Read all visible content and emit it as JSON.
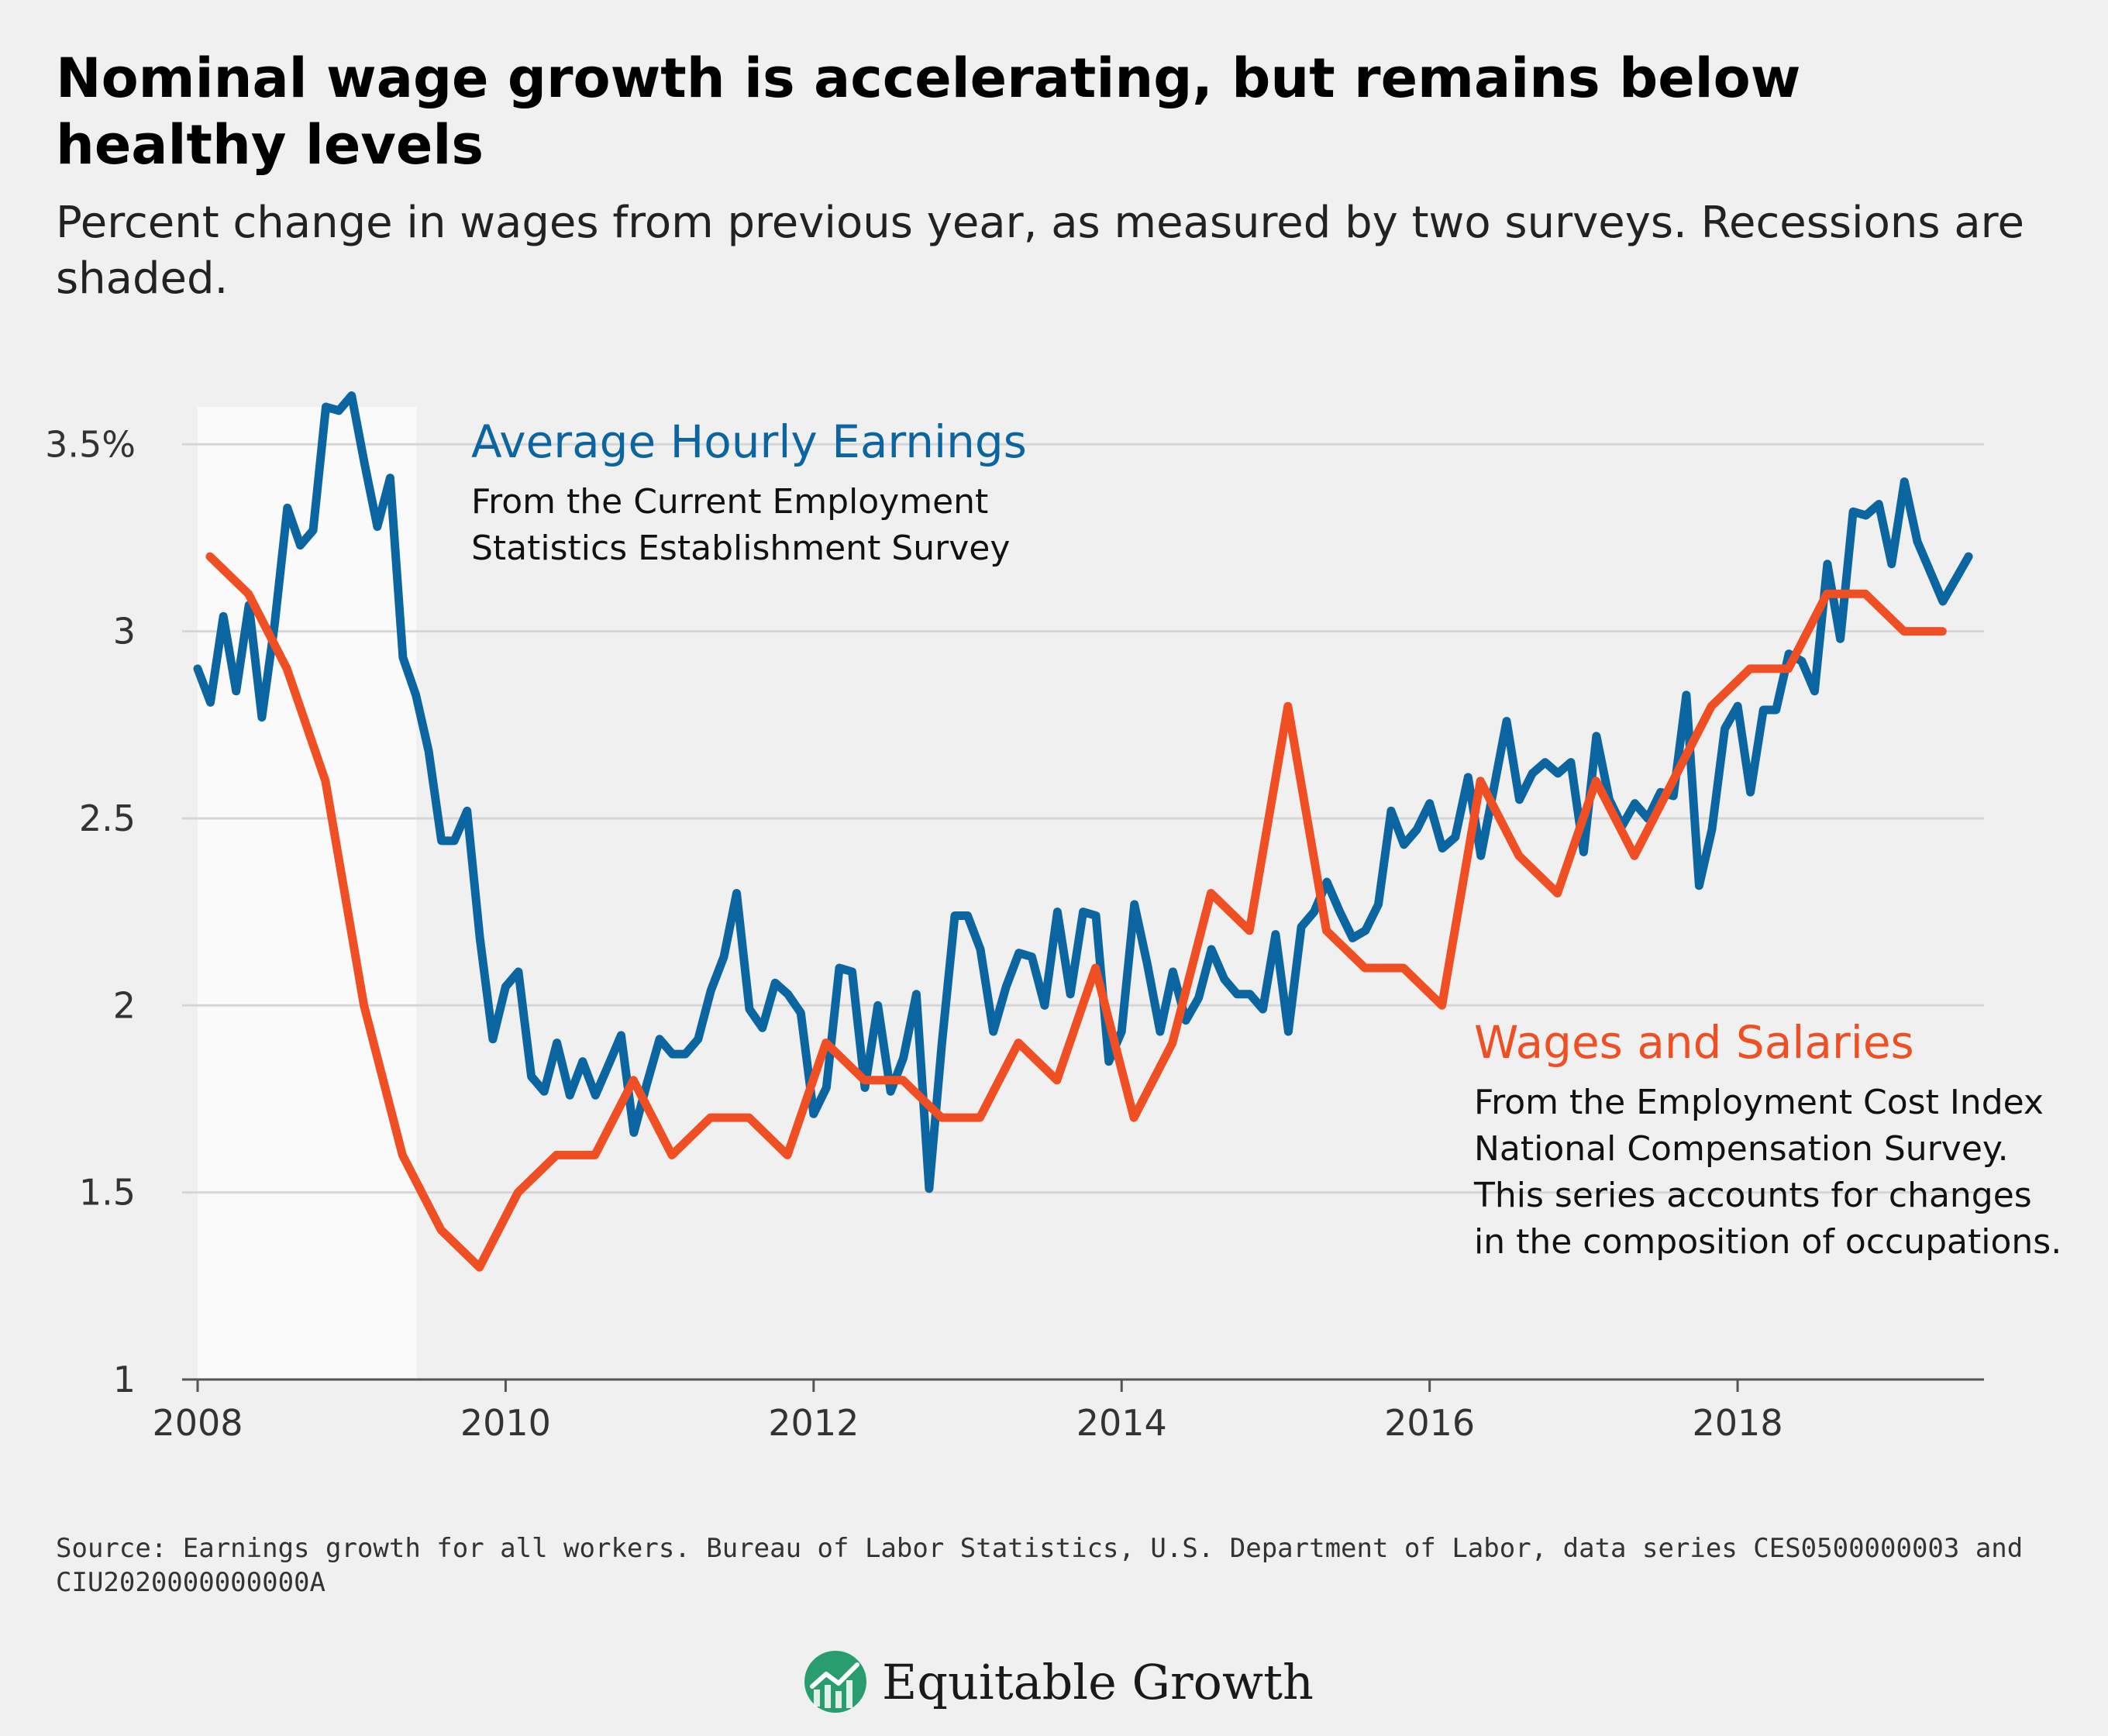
{
  "header": {
    "title": "Nominal wage growth is accelerating, but remains below healthy levels",
    "subtitle": "Percent change in wages from previous year, as measured by two surveys. Recessions are shaded."
  },
  "footer": {
    "source": "Source: Earnings growth for all workers. Bureau of Labor Statistics, U.S. Department of Labor, data series CES0500000003 and CIU2020000000000A",
    "brand": "Equitable Growth"
  },
  "colors": {
    "ahe": "#0a65a0",
    "ecwi": "#f04e23",
    "recession": "#fafafa",
    "grid": "#d6d6d6",
    "brand_green": "#2a9d6e"
  },
  "chart_data": {
    "type": "line",
    "xlim": [
      2008,
      2019.6
    ],
    "ylim": [
      1,
      3.6
    ],
    "x_ticks": [
      {
        "value": 2008,
        "label": "2008"
      },
      {
        "value": 2010,
        "label": "2010"
      },
      {
        "value": 2012,
        "label": "2012"
      },
      {
        "value": 2014,
        "label": "2014"
      },
      {
        "value": 2016,
        "label": "2016"
      },
      {
        "value": 2018,
        "label": "2018"
      }
    ],
    "y_ticks": [
      {
        "value": 1,
        "label": "1"
      },
      {
        "value": 1.5,
        "label": "1.5"
      },
      {
        "value": 2,
        "label": "2"
      },
      {
        "value": 2.5,
        "label": "2.5"
      },
      {
        "value": 3,
        "label": "3"
      },
      {
        "value": 3.5,
        "label": "3.5%"
      }
    ],
    "grid": true,
    "recessions": [
      [
        2008.0,
        2009.42
      ]
    ],
    "series": [
      {
        "name": "Average Hourly Earnings",
        "note_lines": [
          "From the Current Employment",
          "Statistics Establishment Survey"
        ],
        "color": "#0a65a0",
        "x": [
          2008.0,
          2008.083,
          2008.167,
          2008.25,
          2008.333,
          2008.417,
          2008.5,
          2008.583,
          2008.667,
          2008.75,
          2008.833,
          2008.917,
          2009.0,
          2009.083,
          2009.167,
          2009.25,
          2009.333,
          2009.417,
          2009.5,
          2009.583,
          2009.667,
          2009.75,
          2009.833,
          2009.917,
          2010.0,
          2010.083,
          2010.167,
          2010.25,
          2010.333,
          2010.417,
          2010.5,
          2010.583,
          2010.667,
          2010.75,
          2010.833,
          2010.917,
          2011.0,
          2011.083,
          2011.167,
          2011.25,
          2011.333,
          2011.417,
          2011.5,
          2011.583,
          2011.667,
          2011.75,
          2011.833,
          2011.917,
          2012.0,
          2012.083,
          2012.167,
          2012.25,
          2012.333,
          2012.417,
          2012.5,
          2012.583,
          2012.667,
          2012.75,
          2012.833,
          2012.917,
          2013.0,
          2013.083,
          2013.167,
          2013.25,
          2013.333,
          2013.417,
          2013.5,
          2013.583,
          2013.667,
          2013.75,
          2013.833,
          2013.917,
          2014.0,
          2014.083,
          2014.167,
          2014.25,
          2014.333,
          2014.417,
          2014.5,
          2014.583,
          2014.667,
          2014.75,
          2014.833,
          2014.917,
          2015.0,
          2015.083,
          2015.167,
          2015.25,
          2015.333,
          2015.417,
          2015.5,
          2015.583,
          2015.667,
          2015.75,
          2015.833,
          2015.917,
          2016.0,
          2016.083,
          2016.167,
          2016.25,
          2016.333,
          2016.417,
          2016.5,
          2016.583,
          2016.667,
          2016.75,
          2016.833,
          2016.917,
          2017.0,
          2017.083,
          2017.167,
          2017.25,
          2017.333,
          2017.417,
          2017.5,
          2017.583,
          2017.667,
          2017.75,
          2017.833,
          2017.917,
          2018.0,
          2018.083,
          2018.167,
          2018.25,
          2018.333,
          2018.417,
          2018.5,
          2018.583,
          2018.667,
          2018.75,
          2018.833,
          2018.917,
          2019.0,
          2019.083,
          2019.167,
          2019.25,
          2019.333,
          2019.417,
          2019.5
        ],
        "values": [
          2.9,
          2.81,
          3.04,
          2.84,
          3.07,
          2.77,
          3.02,
          3.33,
          3.23,
          3.27,
          3.6,
          3.59,
          3.63,
          3.45,
          3.28,
          3.41,
          2.93,
          2.83,
          2.68,
          2.44,
          2.44,
          2.52,
          2.18,
          1.91,
          2.05,
          2.09,
          1.81,
          1.77,
          1.9,
          1.76,
          1.85,
          1.76,
          1.84,
          1.92,
          1.66,
          1.79,
          1.91,
          1.87,
          1.87,
          1.91,
          2.04,
          2.13,
          2.3,
          1.99,
          1.94,
          2.06,
          2.03,
          1.98,
          1.71,
          1.78,
          2.1,
          2.09,
          1.78,
          2.0,
          1.77,
          1.86,
          2.03,
          1.51,
          1.9,
          2.24,
          2.24,
          2.15,
          1.93,
          2.05,
          2.14,
          2.13,
          2.0,
          2.25,
          2.03,
          2.25,
          2.24,
          1.85,
          1.93,
          2.27,
          2.11,
          1.93,
          2.09,
          1.96,
          2.02,
          2.15,
          2.07,
          2.03,
          2.03,
          1.99,
          2.19,
          1.93,
          2.21,
          2.25,
          2.33,
          2.25,
          2.18,
          2.2,
          2.27,
          2.52,
          2.43,
          2.47,
          2.54,
          2.42,
          2.45,
          2.61,
          2.4,
          2.58,
          2.76,
          2.55,
          2.62,
          2.65,
          2.62,
          2.65,
          2.41,
          2.72,
          2.55,
          2.48,
          2.54,
          2.5,
          2.57,
          2.56,
          2.83,
          2.32,
          2.47,
          2.74,
          2.8,
          2.57,
          2.79,
          2.79,
          2.94,
          2.92,
          2.84,
          3.18,
          2.98,
          3.32,
          3.31,
          3.34,
          3.18,
          3.4,
          3.24,
          3.16,
          3.08,
          3.14,
          3.2
        ]
      },
      {
        "name": "Wages and Salaries",
        "note_lines": [
          "From the Employment Cost Index",
          "National Compensation Survey.",
          "This series accounts for changes",
          "in the composition of occupations."
        ],
        "color": "#f04e23",
        "x": [
          2008.08,
          2008.33,
          2008.58,
          2008.83,
          2009.08,
          2009.33,
          2009.58,
          2009.83,
          2010.08,
          2010.33,
          2010.58,
          2010.83,
          2011.08,
          2011.33,
          2011.58,
          2011.83,
          2012.08,
          2012.33,
          2012.58,
          2012.83,
          2013.08,
          2013.33,
          2013.58,
          2013.83,
          2014.08,
          2014.33,
          2014.58,
          2014.83,
          2015.08,
          2015.33,
          2015.58,
          2015.83,
          2016.08,
          2016.33,
          2016.58,
          2016.83,
          2017.08,
          2017.33,
          2017.58,
          2017.83,
          2018.08,
          2018.33,
          2018.58,
          2018.83,
          2019.08,
          2019.33
        ],
        "values": [
          3.2,
          3.1,
          2.9,
          2.6,
          2.0,
          1.6,
          1.4,
          1.3,
          1.5,
          1.6,
          1.6,
          1.8,
          1.6,
          1.7,
          1.7,
          1.6,
          1.9,
          1.8,
          1.8,
          1.7,
          1.7,
          1.9,
          1.8,
          2.1,
          1.7,
          1.9,
          2.3,
          2.2,
          2.8,
          2.2,
          2.1,
          2.1,
          2.0,
          2.6,
          2.4,
          2.3,
          2.6,
          2.4,
          2.6,
          2.8,
          2.9,
          2.9,
          3.1,
          3.1,
          3.0,
          3.0
        ]
      }
    ]
  }
}
